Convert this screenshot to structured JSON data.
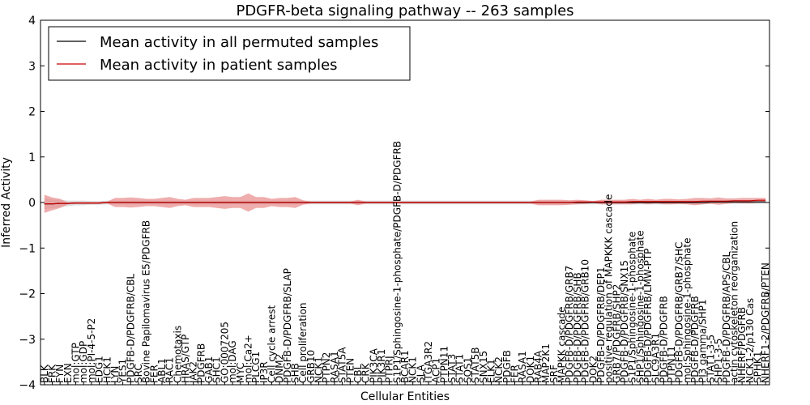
{
  "chart_data": {
    "type": "line",
    "title": "PDGFR-beta signaling pathway -- 263 samples",
    "xlabel": "Cellular Entities",
    "ylabel": "Inferred Activity",
    "ylim": [
      -4,
      4
    ],
    "yticks": [
      -4,
      -3,
      -2,
      -1,
      0,
      1,
      2,
      3,
      4
    ],
    "ytick_labels": [
      "−4",
      "−3",
      "−2",
      "−1",
      "0",
      "1",
      "2",
      "3",
      "4"
    ],
    "grid": false,
    "legend_position": "top-left",
    "categories": [
      "BLK",
      "FRK",
      "FYN",
      "EXN",
      "mol:GTP",
      "mol:GDP",
      "mol:PI-4-5-P2",
      "EDG1",
      "HCK1",
      "LYN",
      "YES1",
      "PDGFB-D/PDGFRB/CBL",
      "SRC",
      "Bovine Papilomavirus E5/PDGFRB",
      "FER",
      "ABL1",
      "RAC1",
      "Chemotaxis",
      "HRAS/GTP",
      "JAK2",
      "PDGFRB",
      "GAB1",
      "SHC1",
      "GO:0007205",
      "mol:DAG",
      "MYC",
      "mol:Ca2+",
      "PLCG1",
      "IP3R",
      "Cell cycle arrest",
      "DNM2",
      "PDGFB-D/PDGFRB/SLAP",
      "SHB",
      "Cell proliferation",
      "GRB10",
      "NCK1",
      "PTPN2",
      "RASA1",
      "STAT5A",
      "PTEN",
      "CBL",
      "CRK",
      "PIK3CA",
      "PIK3R1",
      "PTPRJ",
      "S1P1/Sphingosine-1-phosphate/PDGFB-D/PDGFRB",
      "BCAR1",
      "NCK1",
      "SLA",
      "ITGA3R2",
      "ACP1",
      "PTPN11",
      "STAT3",
      "STAT1",
      "SOS1",
      "STAT5B",
      "SNX15",
      "ELK1",
      "NCK2",
      "PDGFB",
      "FER",
      "RASA1",
      "DOK1",
      "RAB4A",
      "MAP2K1",
      "SRF",
      "MAPKK cascade",
      "PDGFB-D/PDGFRB/GRB7",
      "PDGFB-D/PDGFRB/SHB",
      "PDGFB-D/PDGFRB/GRB10",
      "DOK2",
      "PDGFB-D/PDGFRB/DEP1",
      "positive regulation of MAPKKK cascade",
      "GRB7/PDGFRB/SHP2",
      "PDGFB-D/PDGFRB/SNX15",
      "S1P1/Sphingosine-1-phosphate",
      "SHP1/Sphingosine-1-phosphate",
      "PDGFB-D/PDGFRB/LMW-PTP",
      "SLC9A3R1",
      "PDGFB-D/PDGFRB",
      "PTPN11",
      "PDGFB-D/PDGFRB/GRB7/SHC",
      "mol:Sphingosine-1-phosphate",
      "PDGFB-D/PDGFRB",
      "PI3 gamma/SHP1",
      "STAT1-3-5",
      "SHP1-3-5",
      "PDGFB-D/PDGFRB/APS/CBL",
      "actin cytoskeleton reorganization",
      "NHERF/PDGFRB",
      "NCK1-2/p130 Cas",
      "SPHK1",
      "NHERF1-2/PDGFRB/PTEN"
    ],
    "series": [
      {
        "name": "Mean activity in all permuted samples",
        "color": "#000000",
        "band_color": "#b9b9b9",
        "values": [
          -0.03,
          -0.03,
          -0.02,
          -0.02,
          -0.01,
          -0.01,
          -0.01,
          -0.01,
          0,
          0,
          0,
          0,
          0,
          0,
          0,
          0,
          0,
          0,
          0,
          0,
          0,
          0,
          0,
          0,
          0,
          0,
          0,
          0,
          0,
          0,
          0,
          0,
          0,
          0,
          0,
          0,
          0,
          0,
          0,
          0,
          0,
          0,
          0,
          0,
          0,
          0,
          0,
          0,
          0,
          0,
          0,
          0,
          0,
          0,
          0,
          0,
          0,
          0,
          0,
          0,
          0,
          0,
          0,
          0,
          0,
          0,
          0,
          0,
          0,
          0,
          0,
          0,
          0,
          0,
          0,
          0,
          0,
          0,
          0,
          0,
          0,
          0,
          0,
          0,
          0,
          0.01,
          0.01,
          0.01,
          0.01,
          0.01,
          0.01,
          0.01,
          0.01
        ],
        "band": [
          0.12,
          0.1,
          0.08,
          0.06,
          0.05,
          0.05,
          0.04,
          0.04,
          0.04,
          0.04,
          0.04,
          0.04,
          0.04,
          0.04,
          0.04,
          0.04,
          0.04,
          0.04,
          0.04,
          0.04,
          0.04,
          0.04,
          0.04,
          0.04,
          0.04,
          0.04,
          0.04,
          0.04,
          0.04,
          0.04,
          0.04,
          0.04,
          0.04,
          0.04,
          0.04,
          0.04,
          0.04,
          0.04,
          0.04,
          0.04,
          0.04,
          0.04,
          0.04,
          0.04,
          0.04,
          0.04,
          0.04,
          0.04,
          0.04,
          0.04,
          0.04,
          0.04,
          0.04,
          0.04,
          0.04,
          0.04,
          0.04,
          0.04,
          0.04,
          0.04,
          0.04,
          0.04,
          0.04,
          0.04,
          0.04,
          0.04,
          0.04,
          0.04,
          0.04,
          0.04,
          0.04,
          0.04,
          0.04,
          0.04,
          0.04,
          0.04,
          0.04,
          0.04,
          0.04,
          0.04,
          0.04,
          0.04,
          0.04,
          0.04,
          0.04,
          0.04,
          0.04,
          0.04,
          0.04,
          0.04,
          0.04,
          0.04,
          0.04
        ]
      },
      {
        "name": "Mean activity in patient samples",
        "color": "#cc0000",
        "band_color": "#e88a8a",
        "values": [
          -0.03,
          -0.03,
          -0.02,
          -0.02,
          -0.01,
          -0.01,
          -0.01,
          -0.01,
          0,
          0,
          0,
          0,
          0,
          0,
          0,
          0,
          0,
          0,
          0,
          0,
          0,
          0,
          0,
          0,
          0,
          0,
          0,
          0,
          0,
          0,
          0,
          0,
          0,
          0,
          0,
          0,
          0,
          0,
          0,
          0,
          0,
          0,
          0,
          0,
          0,
          0,
          0,
          0,
          0,
          0,
          0,
          0,
          0,
          0,
          0,
          0,
          0,
          0,
          0,
          0,
          0,
          0,
          0,
          0,
          0,
          0,
          0,
          0,
          0.01,
          0.01,
          0.01,
          0.01,
          0.01,
          0.01,
          0.01,
          0.02,
          0.02,
          0.02,
          0.02,
          0.02,
          0.02,
          0.02,
          0.02,
          0.02,
          0.03,
          0.03,
          0.03,
          0.03,
          0.04,
          0.04,
          0.04,
          0.05,
          0.05
        ],
        "band": [
          0.2,
          0.14,
          0.1,
          0.02,
          0.02,
          0.02,
          0.02,
          0.02,
          0.02,
          0.1,
          0.1,
          0.11,
          0.1,
          0.08,
          0.08,
          0.1,
          0.12,
          0.08,
          0.06,
          0.1,
          0.1,
          0.1,
          0.12,
          0.14,
          0.12,
          0.12,
          0.2,
          0.12,
          0.12,
          0.08,
          0.1,
          0.1,
          0.12,
          0.05,
          0.02,
          0.02,
          0.02,
          0.02,
          0.02,
          0.02,
          0.06,
          0.02,
          0.02,
          0.02,
          0.02,
          0.02,
          0.02,
          0.02,
          0.02,
          0.02,
          0.02,
          0.02,
          0.02,
          0.02,
          0.02,
          0.02,
          0.02,
          0.02,
          0.02,
          0.02,
          0.02,
          0.02,
          0.02,
          0.06,
          0.06,
          0.06,
          0.06,
          0.05,
          0.05,
          0.04,
          0.02,
          0.05,
          0.05,
          0.05,
          0.05,
          0.06,
          0.04,
          0.06,
          0.04,
          0.06,
          0.06,
          0.05,
          0.06,
          0.08,
          0.07,
          0.06,
          0.08,
          0.06,
          0.05,
          0.06,
          0.06,
          0.05,
          0.05
        ]
      }
    ]
  }
}
